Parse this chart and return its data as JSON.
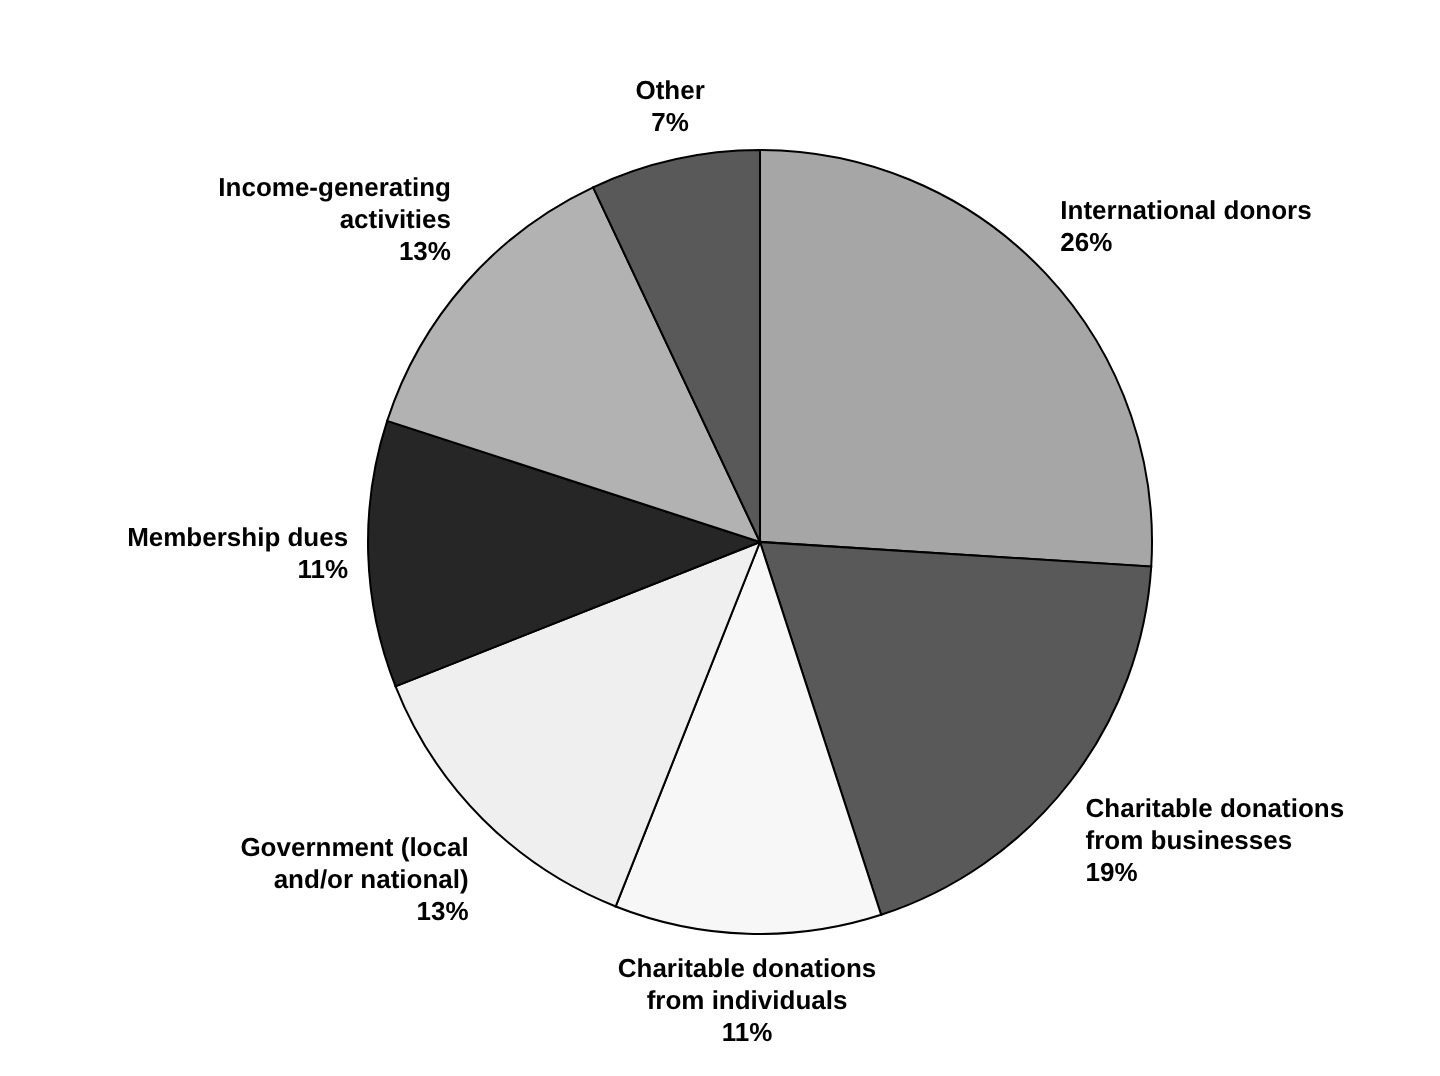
{
  "chart_data": {
    "type": "pie",
    "categories": [
      "International donors",
      "Charitable donations from businesses",
      "Charitable donations from individuals",
      "Government (local and/or national)",
      "Membership dues",
      "Income-generating activities",
      "Other"
    ],
    "values": [
      26,
      19,
      11,
      13,
      11,
      13,
      7
    ],
    "colors": [
      "#a6a6a6",
      "#595959",
      "#f7f7f7",
      "#efefef",
      "#262626",
      "#b2b2b2",
      "#595959"
    ],
    "value_labels": [
      "26%",
      "19%",
      "11%",
      "13%",
      "11%",
      "13%",
      "7%"
    ],
    "legend": false
  }
}
